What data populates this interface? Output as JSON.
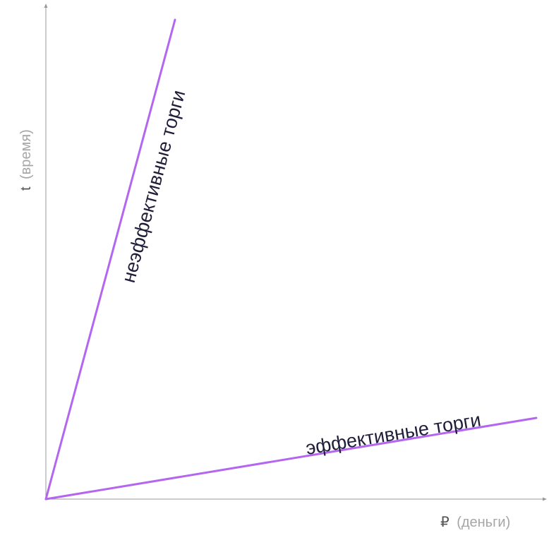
{
  "axes": {
    "x": {
      "symbol": "₽",
      "note": "(деньги)"
    },
    "y": {
      "symbol": "t",
      "note": "(время)"
    }
  },
  "curves": {
    "inefficient": {
      "label": "неэффективные торги",
      "color": "#b366f0"
    },
    "efficient": {
      "label": "эффективные торги",
      "color": "#b366f0"
    }
  },
  "colors": {
    "axis": "#9a9a9a",
    "label_text": "#1f1d3a",
    "axis_text": "#a6a6a6"
  }
}
